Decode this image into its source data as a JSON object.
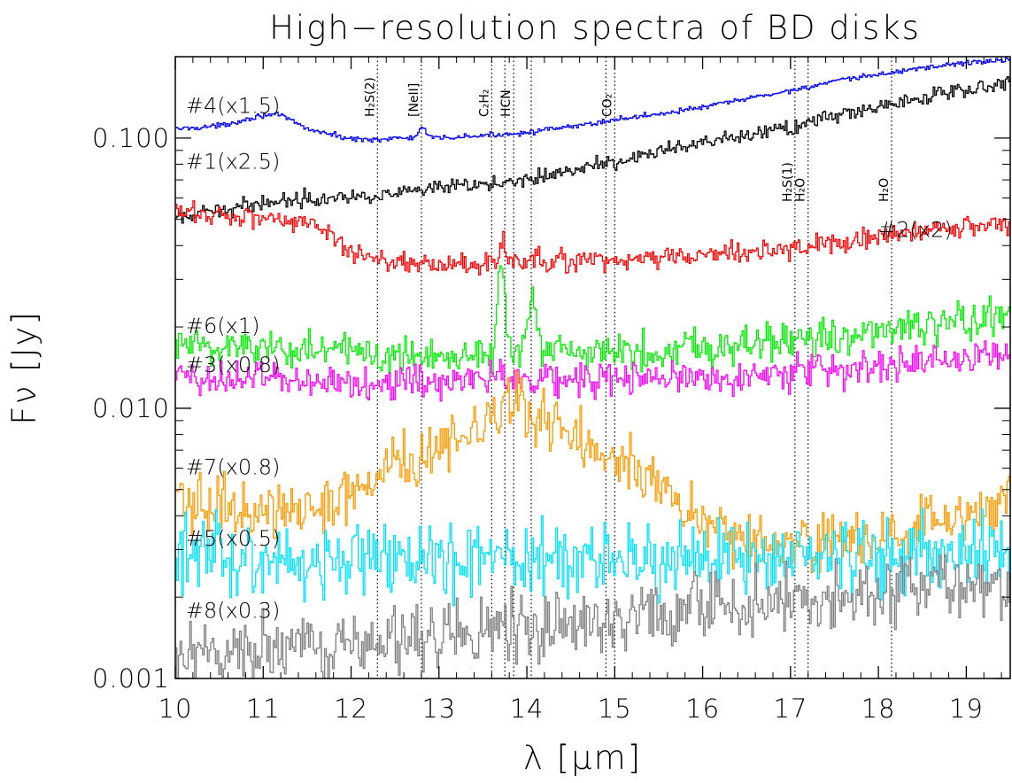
{
  "chart_data": {
    "type": "line",
    "title": "High−resolution spectra of BD disks",
    "xlabel": "λ   [μm]",
    "ylabel": "Fν [Jy]",
    "xlim": [
      10.0,
      19.5
    ],
    "ylim": [
      0.001,
      0.2
    ],
    "yscale": "log",
    "grid": false,
    "xticks": [
      10,
      11,
      12,
      13,
      14,
      15,
      16,
      17,
      18,
      19
    ],
    "xtick_labels": [
      "10",
      "11",
      "12",
      "13",
      "14",
      "15",
      "16",
      "17",
      "18",
      "19"
    ],
    "yticks": [
      0.001,
      0.01,
      0.1
    ],
    "ytick_labels": [
      "0.001",
      "0.010",
      "0.100"
    ],
    "line_markers": [
      {
        "x": 12.3,
        "label": "H₂S(2)"
      },
      {
        "x": 12.8,
        "label": "[NeII]"
      },
      {
        "x": 13.6,
        "label": "C₂H₂"
      },
      {
        "x": 13.75,
        "label": ""
      },
      {
        "x": 13.85,
        "label": "HCN"
      },
      {
        "x": 14.05,
        "label": ""
      },
      {
        "x": 14.9,
        "label": ""
      },
      {
        "x": 15.0,
        "label": "CO₂"
      },
      {
        "x": 17.05,
        "label": "H₂S(1)"
      },
      {
        "x": 17.2,
        "label": "H₂O"
      },
      {
        "x": 18.15,
        "label": "H₂O"
      }
    ],
    "series": [
      {
        "name": "#4(x1.5)",
        "color": "#0000ff",
        "noise": 0.012,
        "label_x": 10.12,
        "label_y": 0.124,
        "x": [
          10.0,
          10.5,
          11.0,
          11.2,
          11.5,
          12.0,
          12.3,
          12.6,
          13.0,
          13.5,
          14.0,
          14.5,
          15.0,
          15.5,
          16.0,
          16.5,
          17.0,
          17.5,
          18.0,
          18.5,
          19.0,
          19.5
        ],
        "y": [
          0.108,
          0.111,
          0.122,
          0.121,
          0.108,
          0.099,
          0.099,
          0.1,
          0.1,
          0.102,
          0.105,
          0.11,
          0.117,
          0.123,
          0.13,
          0.14,
          0.15,
          0.162,
          0.172,
          0.182,
          0.19,
          0.195
        ],
        "peaks": [
          {
            "x": 12.8,
            "h": 0.1,
            "w": 0.05
          }
        ]
      },
      {
        "name": "#1(x2.5)",
        "color": "#000000",
        "noise": 0.035,
        "label_x": 10.12,
        "label_y": 0.077,
        "x": [
          10.0,
          10.5,
          11.0,
          11.5,
          12.0,
          12.5,
          13.0,
          13.5,
          14.0,
          14.5,
          15.0,
          15.5,
          16.0,
          16.5,
          17.0,
          17.5,
          18.0,
          18.5,
          19.0,
          19.5
        ],
        "y": [
          0.05,
          0.054,
          0.058,
          0.06,
          0.061,
          0.062,
          0.065,
          0.067,
          0.071,
          0.076,
          0.082,
          0.089,
          0.095,
          0.102,
          0.11,
          0.12,
          0.131,
          0.141,
          0.152,
          0.162
        ],
        "peaks": []
      },
      {
        "name": "#2(x2)",
        "color": "#ff0000",
        "noise": 0.05,
        "label_x": 18.0,
        "label_y": 0.043,
        "x": [
          10.0,
          10.5,
          11.0,
          11.5,
          11.8,
          12.0,
          12.5,
          13.0,
          13.5,
          14.0,
          14.5,
          15.0,
          15.5,
          16.0,
          16.5,
          17.0,
          17.5,
          18.0,
          18.5,
          19.0,
          19.5
        ],
        "y": [
          0.053,
          0.052,
          0.051,
          0.049,
          0.042,
          0.038,
          0.035,
          0.034,
          0.034,
          0.035,
          0.035,
          0.035,
          0.036,
          0.037,
          0.038,
          0.039,
          0.041,
          0.043,
          0.045,
          0.047,
          0.048
        ],
        "peaks": [
          {
            "x": 13.72,
            "h": 0.2,
            "w": 0.04
          }
        ]
      },
      {
        "name": "#6(x1)",
        "color": "#00ee00",
        "noise": 0.09,
        "label_x": 10.12,
        "label_y": 0.019,
        "x": [
          10.0,
          11.0,
          12.0,
          13.0,
          13.5,
          14.0,
          15.0,
          16.0,
          17.0,
          18.0,
          19.0,
          19.5
        ],
        "y": [
          0.017,
          0.017,
          0.016,
          0.016,
          0.016,
          0.016,
          0.016,
          0.017,
          0.018,
          0.019,
          0.021,
          0.022
        ],
        "peaks": [
          {
            "x": 13.7,
            "h": 1.2,
            "w": 0.05
          },
          {
            "x": 14.05,
            "h": 0.6,
            "w": 0.06
          }
        ]
      },
      {
        "name": "#3(x0.8)",
        "color": "#ff00ff",
        "noise": 0.08,
        "label_x": 10.12,
        "label_y": 0.0136,
        "x": [
          10.0,
          11.0,
          12.0,
          13.0,
          14.0,
          15.0,
          16.0,
          17.0,
          18.0,
          19.0,
          19.5
        ],
        "y": [
          0.013,
          0.013,
          0.0125,
          0.0125,
          0.0128,
          0.0128,
          0.013,
          0.0135,
          0.0142,
          0.0155,
          0.0165
        ],
        "peaks": [
          {
            "x": 13.7,
            "h": 0.2,
            "w": 0.04
          },
          {
            "x": 17.05,
            "h": 0.15,
            "w": 0.03
          }
        ]
      },
      {
        "name": "#7(x0.8)",
        "color": "#ff9900",
        "noise": 0.13,
        "label_x": 10.12,
        "label_y": 0.0057,
        "x": [
          10.0,
          11.0,
          11.5,
          12.0,
          12.5,
          13.0,
          13.5,
          13.75,
          14.0,
          14.5,
          15.0,
          15.5,
          16.0,
          16.5,
          17.0,
          17.5,
          18.0,
          18.5,
          19.0,
          19.5
        ],
        "y": [
          0.0045,
          0.0042,
          0.0042,
          0.0048,
          0.0062,
          0.007,
          0.0082,
          0.0112,
          0.0098,
          0.0082,
          0.0068,
          0.0052,
          0.0038,
          0.0032,
          0.0031,
          0.0032,
          0.0033,
          0.0036,
          0.0039,
          0.0045
        ],
        "peaks": []
      },
      {
        "name": "#5(x0.5)",
        "color": "#00e0ff",
        "noise": 0.17,
        "label_x": 10.12,
        "label_y": 0.0031,
        "x": [
          10.0,
          11.0,
          12.0,
          13.0,
          14.0,
          15.0,
          16.0,
          17.0,
          18.0,
          19.0,
          19.5
        ],
        "y": [
          0.0028,
          0.0028,
          0.0028,
          0.0027,
          0.0027,
          0.0028,
          0.0028,
          0.0028,
          0.0029,
          0.003,
          0.003
        ],
        "peaks": []
      },
      {
        "name": "#8(x0.3)",
        "color": "#808080",
        "noise": 0.15,
        "label_x": 10.12,
        "label_y": 0.00168,
        "x": [
          10.0,
          11.0,
          12.0,
          13.0,
          14.0,
          15.0,
          16.0,
          17.0,
          18.0,
          19.0,
          19.5
        ],
        "y": [
          0.00112,
          0.00128,
          0.00138,
          0.00145,
          0.00155,
          0.00168,
          0.00182,
          0.00196,
          0.00208,
          0.0022,
          0.00226
        ],
        "peaks": []
      }
    ]
  }
}
